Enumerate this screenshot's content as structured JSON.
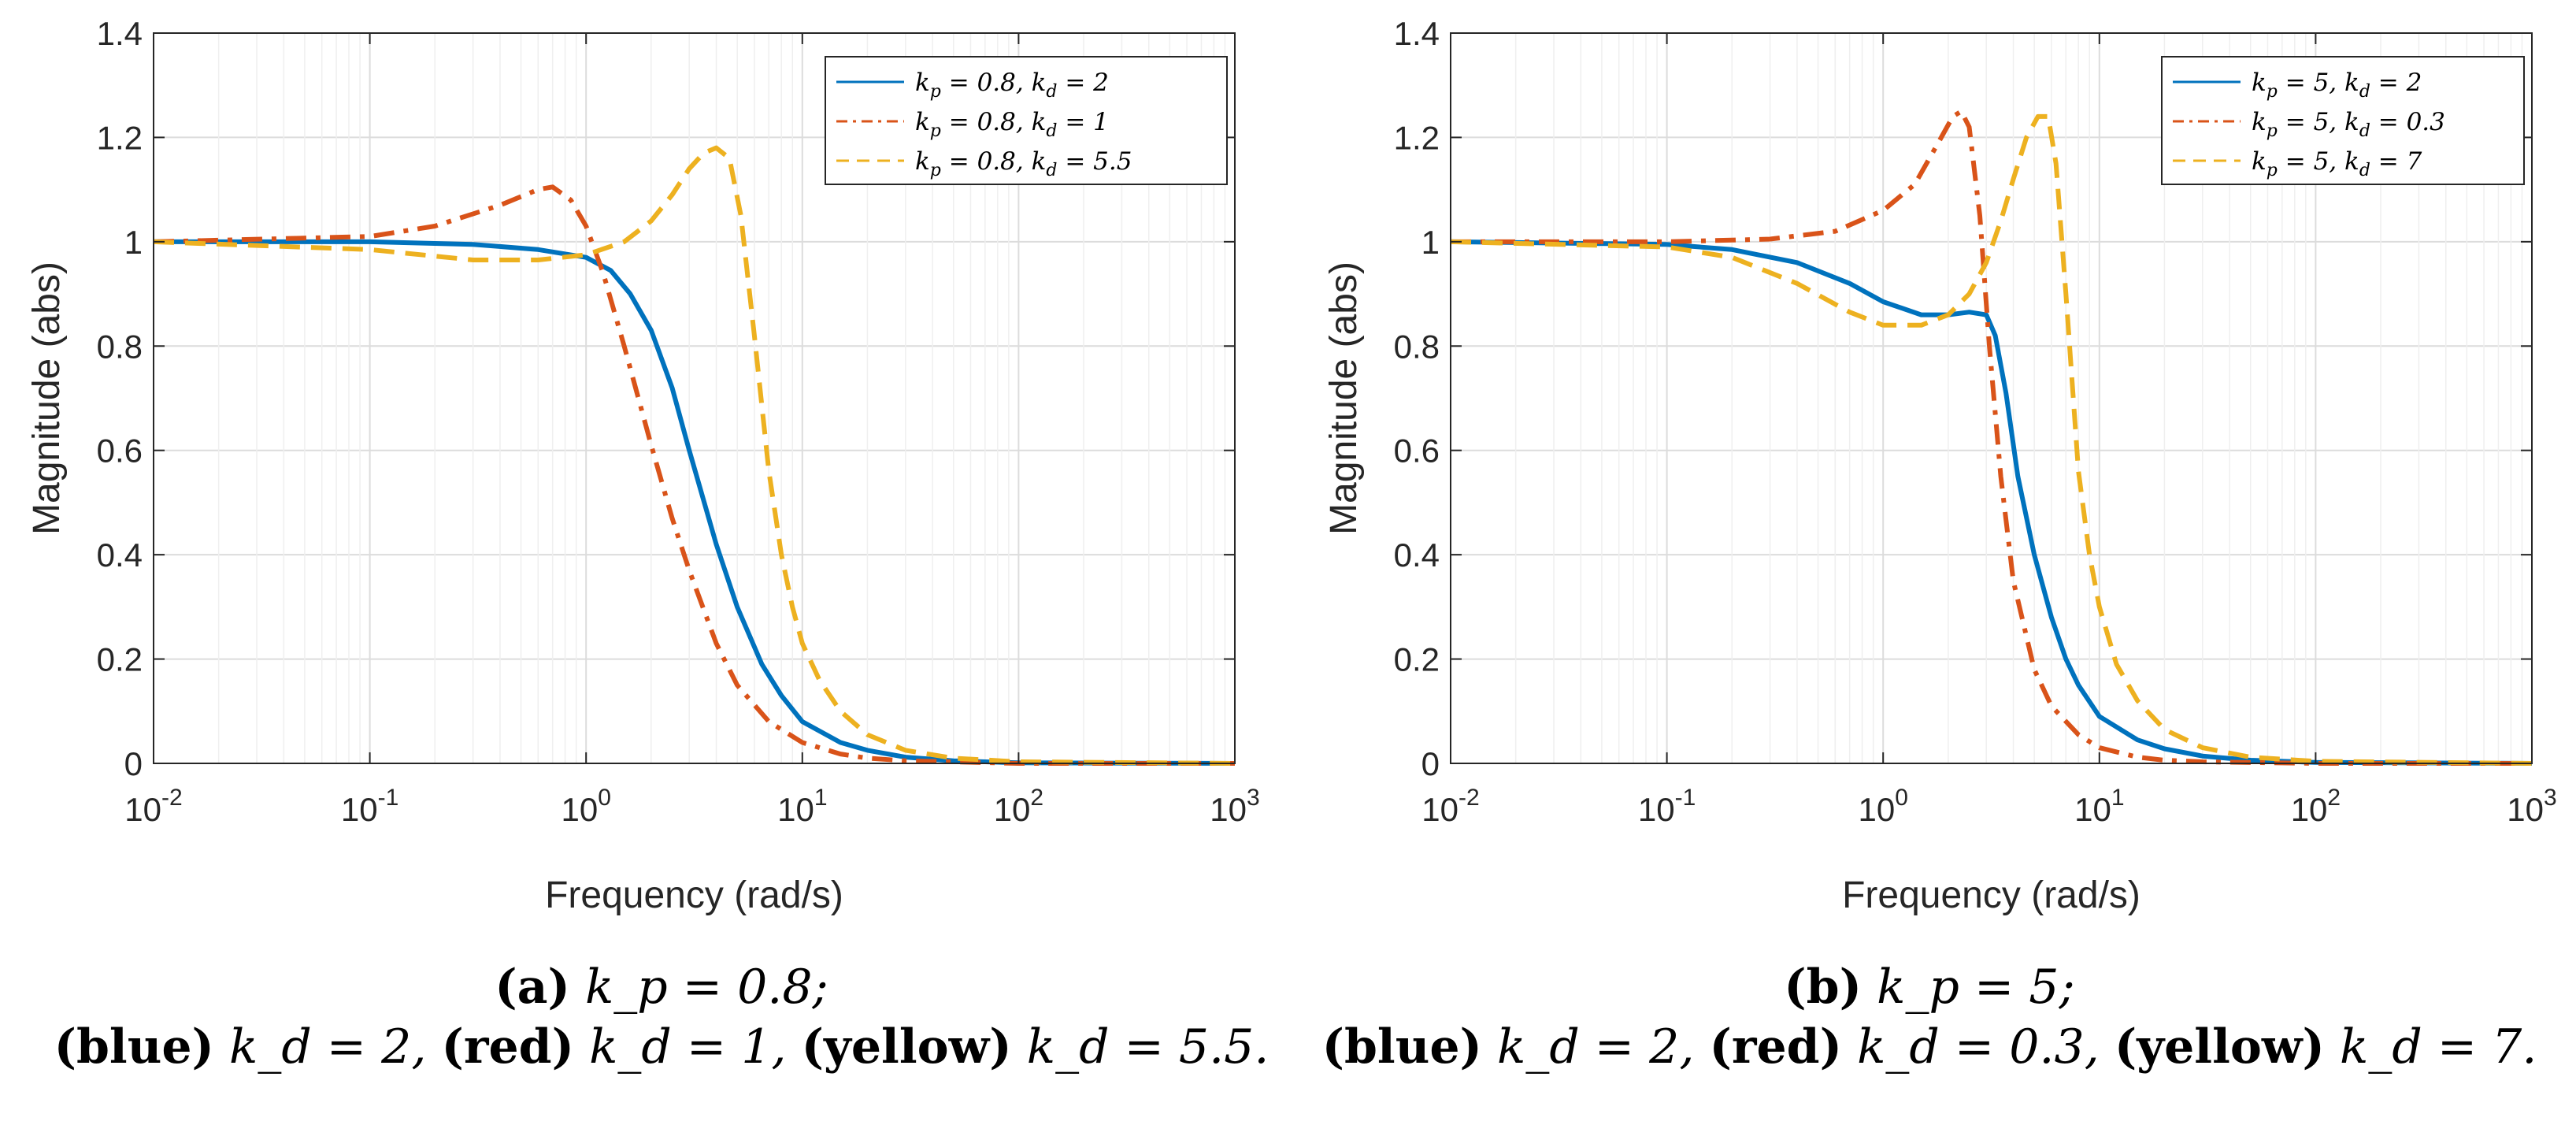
{
  "chart_data": [
    {
      "type": "line",
      "xscale": "log",
      "xlim": [
        0.01,
        1000
      ],
      "ylim": [
        0,
        1.4
      ],
      "xlabel": "Frequency (rad/s)",
      "ylabel": "Magnitude (abs)",
      "xticks": [
        "10^-2",
        "10^-1",
        "10^0",
        "10^1",
        "10^2",
        "10^3"
      ],
      "yticks": [
        "0",
        "0.2",
        "0.4",
        "0.6",
        "0.8",
        "1",
        "1.2",
        "1.4"
      ],
      "grid": true,
      "legend_position": "top-right",
      "series": [
        {
          "name": "k_p = 0.8,  k_d = 2",
          "color": "#0072BD",
          "style": "solid",
          "x": [
            0.01,
            0.1,
            0.3,
            0.6,
            1.0,
            1.3,
            1.6,
            2.0,
            2.5,
            3.0,
            4.0,
            5.0,
            6.5,
            8.0,
            10,
            15,
            20,
            30,
            50,
            100,
            1000
          ],
          "y": [
            1.0,
            1.0,
            0.995,
            0.985,
            0.97,
            0.945,
            0.9,
            0.83,
            0.72,
            0.6,
            0.42,
            0.3,
            0.19,
            0.13,
            0.08,
            0.04,
            0.025,
            0.012,
            0.005,
            0.001,
            0.0
          ]
        },
        {
          "name": "k_p = 0.8,  k_d = 1",
          "color": "#D95319",
          "style": "dashdot",
          "x": [
            0.01,
            0.1,
            0.2,
            0.4,
            0.6,
            0.7,
            0.85,
            1.0,
            1.2,
            1.5,
            2.0,
            2.5,
            3.0,
            4.0,
            5.0,
            7.0,
            10,
            15,
            20,
            30,
            100,
            1000
          ],
          "y": [
            1.0,
            1.01,
            1.03,
            1.07,
            1.1,
            1.105,
            1.08,
            1.03,
            0.94,
            0.8,
            0.61,
            0.47,
            0.37,
            0.23,
            0.15,
            0.08,
            0.04,
            0.018,
            0.01,
            0.005,
            0.0,
            0.0
          ]
        },
        {
          "name": "k_p = 0.8,  k_d = 5.5",
          "color": "#EDB120",
          "style": "dashed",
          "x": [
            0.01,
            0.1,
            0.3,
            0.6,
            1.0,
            1.5,
            2.0,
            2.5,
            3.0,
            3.5,
            4.0,
            4.6,
            5.2,
            6.0,
            7.0,
            8.0,
            9.0,
            10,
            12,
            15,
            20,
            30,
            50,
            100,
            1000
          ],
          "y": [
            1.0,
            0.985,
            0.965,
            0.965,
            0.975,
            1.0,
            1.04,
            1.09,
            1.14,
            1.17,
            1.18,
            1.16,
            1.05,
            0.82,
            0.56,
            0.4,
            0.3,
            0.23,
            0.16,
            0.1,
            0.055,
            0.025,
            0.01,
            0.003,
            0.0
          ]
        }
      ],
      "legend": [
        "k_p = 0.8,  k_d = 2",
        "k_p = 0.8,  k_d = 1",
        "k_p = 0.8,  k_d = 5.5"
      ]
    },
    {
      "type": "line",
      "xscale": "log",
      "xlim": [
        0.01,
        1000
      ],
      "ylim": [
        0,
        1.4
      ],
      "xlabel": "Frequency (rad/s)",
      "ylabel": "Magnitude (abs)",
      "xticks": [
        "10^-2",
        "10^-1",
        "10^0",
        "10^1",
        "10^2",
        "10^3"
      ],
      "yticks": [
        "0",
        "0.2",
        "0.4",
        "0.6",
        "0.8",
        "1",
        "1.2",
        "1.4"
      ],
      "grid": true,
      "legend_position": "top-right",
      "series": [
        {
          "name": "k_p = 5,  k_d = 2",
          "color": "#0072BD",
          "style": "solid",
          "x": [
            0.01,
            0.1,
            0.2,
            0.4,
            0.7,
            1.0,
            1.5,
            2.0,
            2.5,
            3.0,
            3.3,
            3.7,
            4.2,
            5.0,
            6.0,
            7.0,
            8.0,
            10,
            15,
            20,
            30,
            50,
            100,
            1000
          ],
          "y": [
            1.0,
            0.995,
            0.985,
            0.96,
            0.92,
            0.885,
            0.86,
            0.86,
            0.865,
            0.86,
            0.82,
            0.71,
            0.55,
            0.4,
            0.28,
            0.2,
            0.15,
            0.09,
            0.045,
            0.028,
            0.014,
            0.006,
            0.002,
            0.0
          ]
        },
        {
          "name": "k_p = 5,  k_d = 0.3",
          "color": "#D95319",
          "style": "dashdot",
          "x": [
            0.01,
            0.1,
            0.3,
            0.6,
            1.0,
            1.4,
            1.8,
            2.1,
            2.3,
            2.5,
            2.8,
            3.1,
            3.5,
            4.0,
            5.0,
            6.0,
            8.0,
            10,
            15,
            20,
            30,
            100,
            1000
          ],
          "y": [
            1.0,
            1.0,
            1.005,
            1.02,
            1.06,
            1.11,
            1.19,
            1.24,
            1.25,
            1.22,
            1.05,
            0.8,
            0.55,
            0.35,
            0.18,
            0.11,
            0.055,
            0.03,
            0.012,
            0.006,
            0.003,
            0.0,
            0.0
          ]
        },
        {
          "name": "k_p = 5,  k_d = 7",
          "color": "#EDB120",
          "style": "dashed",
          "x": [
            0.01,
            0.1,
            0.2,
            0.4,
            0.7,
            1.0,
            1.5,
            2.0,
            2.5,
            3.0,
            3.5,
            4.0,
            4.6,
            5.2,
            5.8,
            6.3,
            7.0,
            8.0,
            9.0,
            10,
            12,
            15,
            20,
            30,
            50,
            100,
            1000
          ],
          "y": [
            1.0,
            0.99,
            0.97,
            0.92,
            0.865,
            0.84,
            0.84,
            0.86,
            0.9,
            0.96,
            1.04,
            1.12,
            1.2,
            1.24,
            1.24,
            1.15,
            0.9,
            0.56,
            0.4,
            0.3,
            0.19,
            0.12,
            0.065,
            0.03,
            0.012,
            0.004,
            0.0
          ]
        }
      ],
      "legend": [
        "k_p = 5,  k_d = 2",
        "k_p = 5,  k_d = 0.3",
        "k_p = 5,  k_d = 7"
      ]
    }
  ],
  "captions": [
    {
      "label": "(a)",
      "line1_math": "k_p = 0.8;",
      "blue_label": "(blue)",
      "blue_math": "k_d = 2,",
      "red_label": "(red)",
      "red_math": "k_d = 1,",
      "yellow_label": "(yellow)",
      "yellow_math": "k_d = 5.5."
    },
    {
      "label": "(b)",
      "line1_math": "k_p = 5;",
      "blue_label": "(blue)",
      "blue_math": "k_d = 2,",
      "red_label": "(red)",
      "red_math": "k_d = 0.3,",
      "yellow_label": "(yellow)",
      "yellow_math": "k_d = 7."
    }
  ]
}
